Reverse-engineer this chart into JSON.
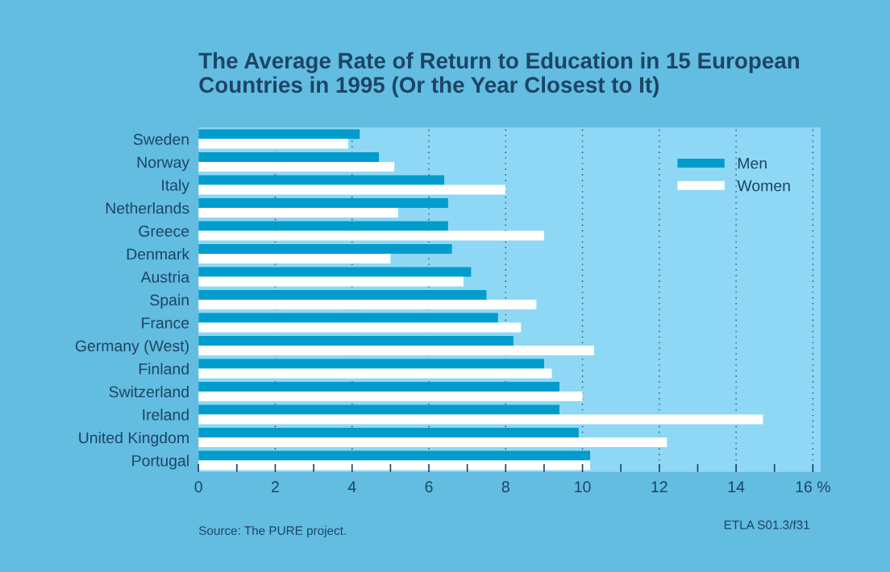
{
  "chart_data": {
    "type": "bar",
    "orientation": "horizontal",
    "title": "The Average Rate of Return to Education in 15 European Countries in 1995 (Or the Year Closest to It)",
    "categories": [
      "Sweden",
      "Norway",
      "Italy",
      "Netherlands",
      "Greece",
      "Denmark",
      "Austria",
      "Spain",
      "France",
      "Germany (West)",
      "Finland",
      "Switzerland",
      "Ireland",
      "United Kingdom",
      "Portugal"
    ],
    "series": [
      {
        "name": "Men",
        "color": "#009ccc",
        "values": [
          4.2,
          4.7,
          6.4,
          6.5,
          6.5,
          6.6,
          7.1,
          7.5,
          7.8,
          8.2,
          9.0,
          9.4,
          9.4,
          9.9,
          10.2
        ]
      },
      {
        "name": "Women",
        "color": "#ffffff",
        "values": [
          3.9,
          5.1,
          8.0,
          5.2,
          9.0,
          5.0,
          6.9,
          8.8,
          8.4,
          10.3,
          9.2,
          10.0,
          14.7,
          12.2,
          10.2
        ]
      }
    ],
    "xlim": [
      0,
      16.2
    ],
    "xticks": [
      0,
      {
        "value": 1,
        "label": null
      },
      2,
      {
        "value": 3,
        "label": null
      },
      4,
      {
        "value": 5,
        "label": null
      },
      6,
      {
        "value": 7,
        "label": null
      },
      8,
      {
        "value": 9,
        "label": null
      },
      10,
      {
        "value": 11,
        "label": null
      },
      12,
      {
        "value": 13,
        "label": null
      },
      14,
      {
        "value": 15,
        "label": null
      },
      {
        "value": 16,
        "label": "16 %"
      }
    ],
    "grid": "x",
    "legend": "top right",
    "annotations": [
      "Source: The PURE project.",
      "ETLA S01.3/f31"
    ]
  }
}
